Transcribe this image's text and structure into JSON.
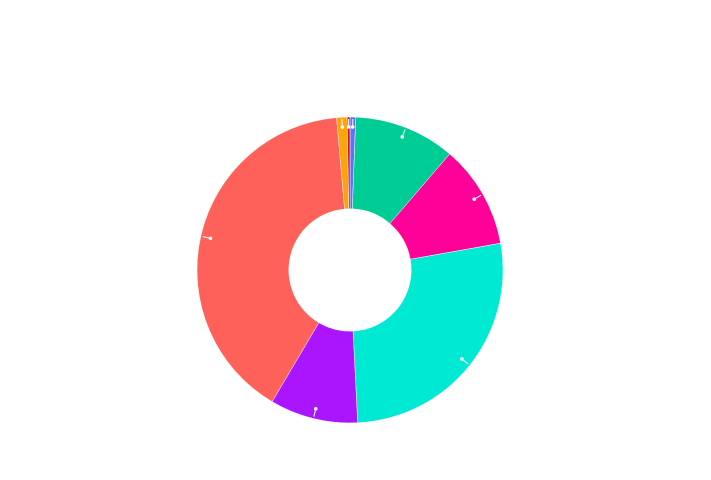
{
  "chart_data": {
    "type": "pie",
    "hole": 0.4,
    "values": [
      0.6,
      10.7,
      10.9,
      27,
      9.3,
      40.1,
      1.1,
      0.3
    ],
    "colors": [
      "#636efa",
      "#00cc96",
      "#ff0099",
      "#00ead3",
      "#ab15fd",
      "#fe6159",
      "#ffa30b",
      "#c4161c"
    ]
  }
}
